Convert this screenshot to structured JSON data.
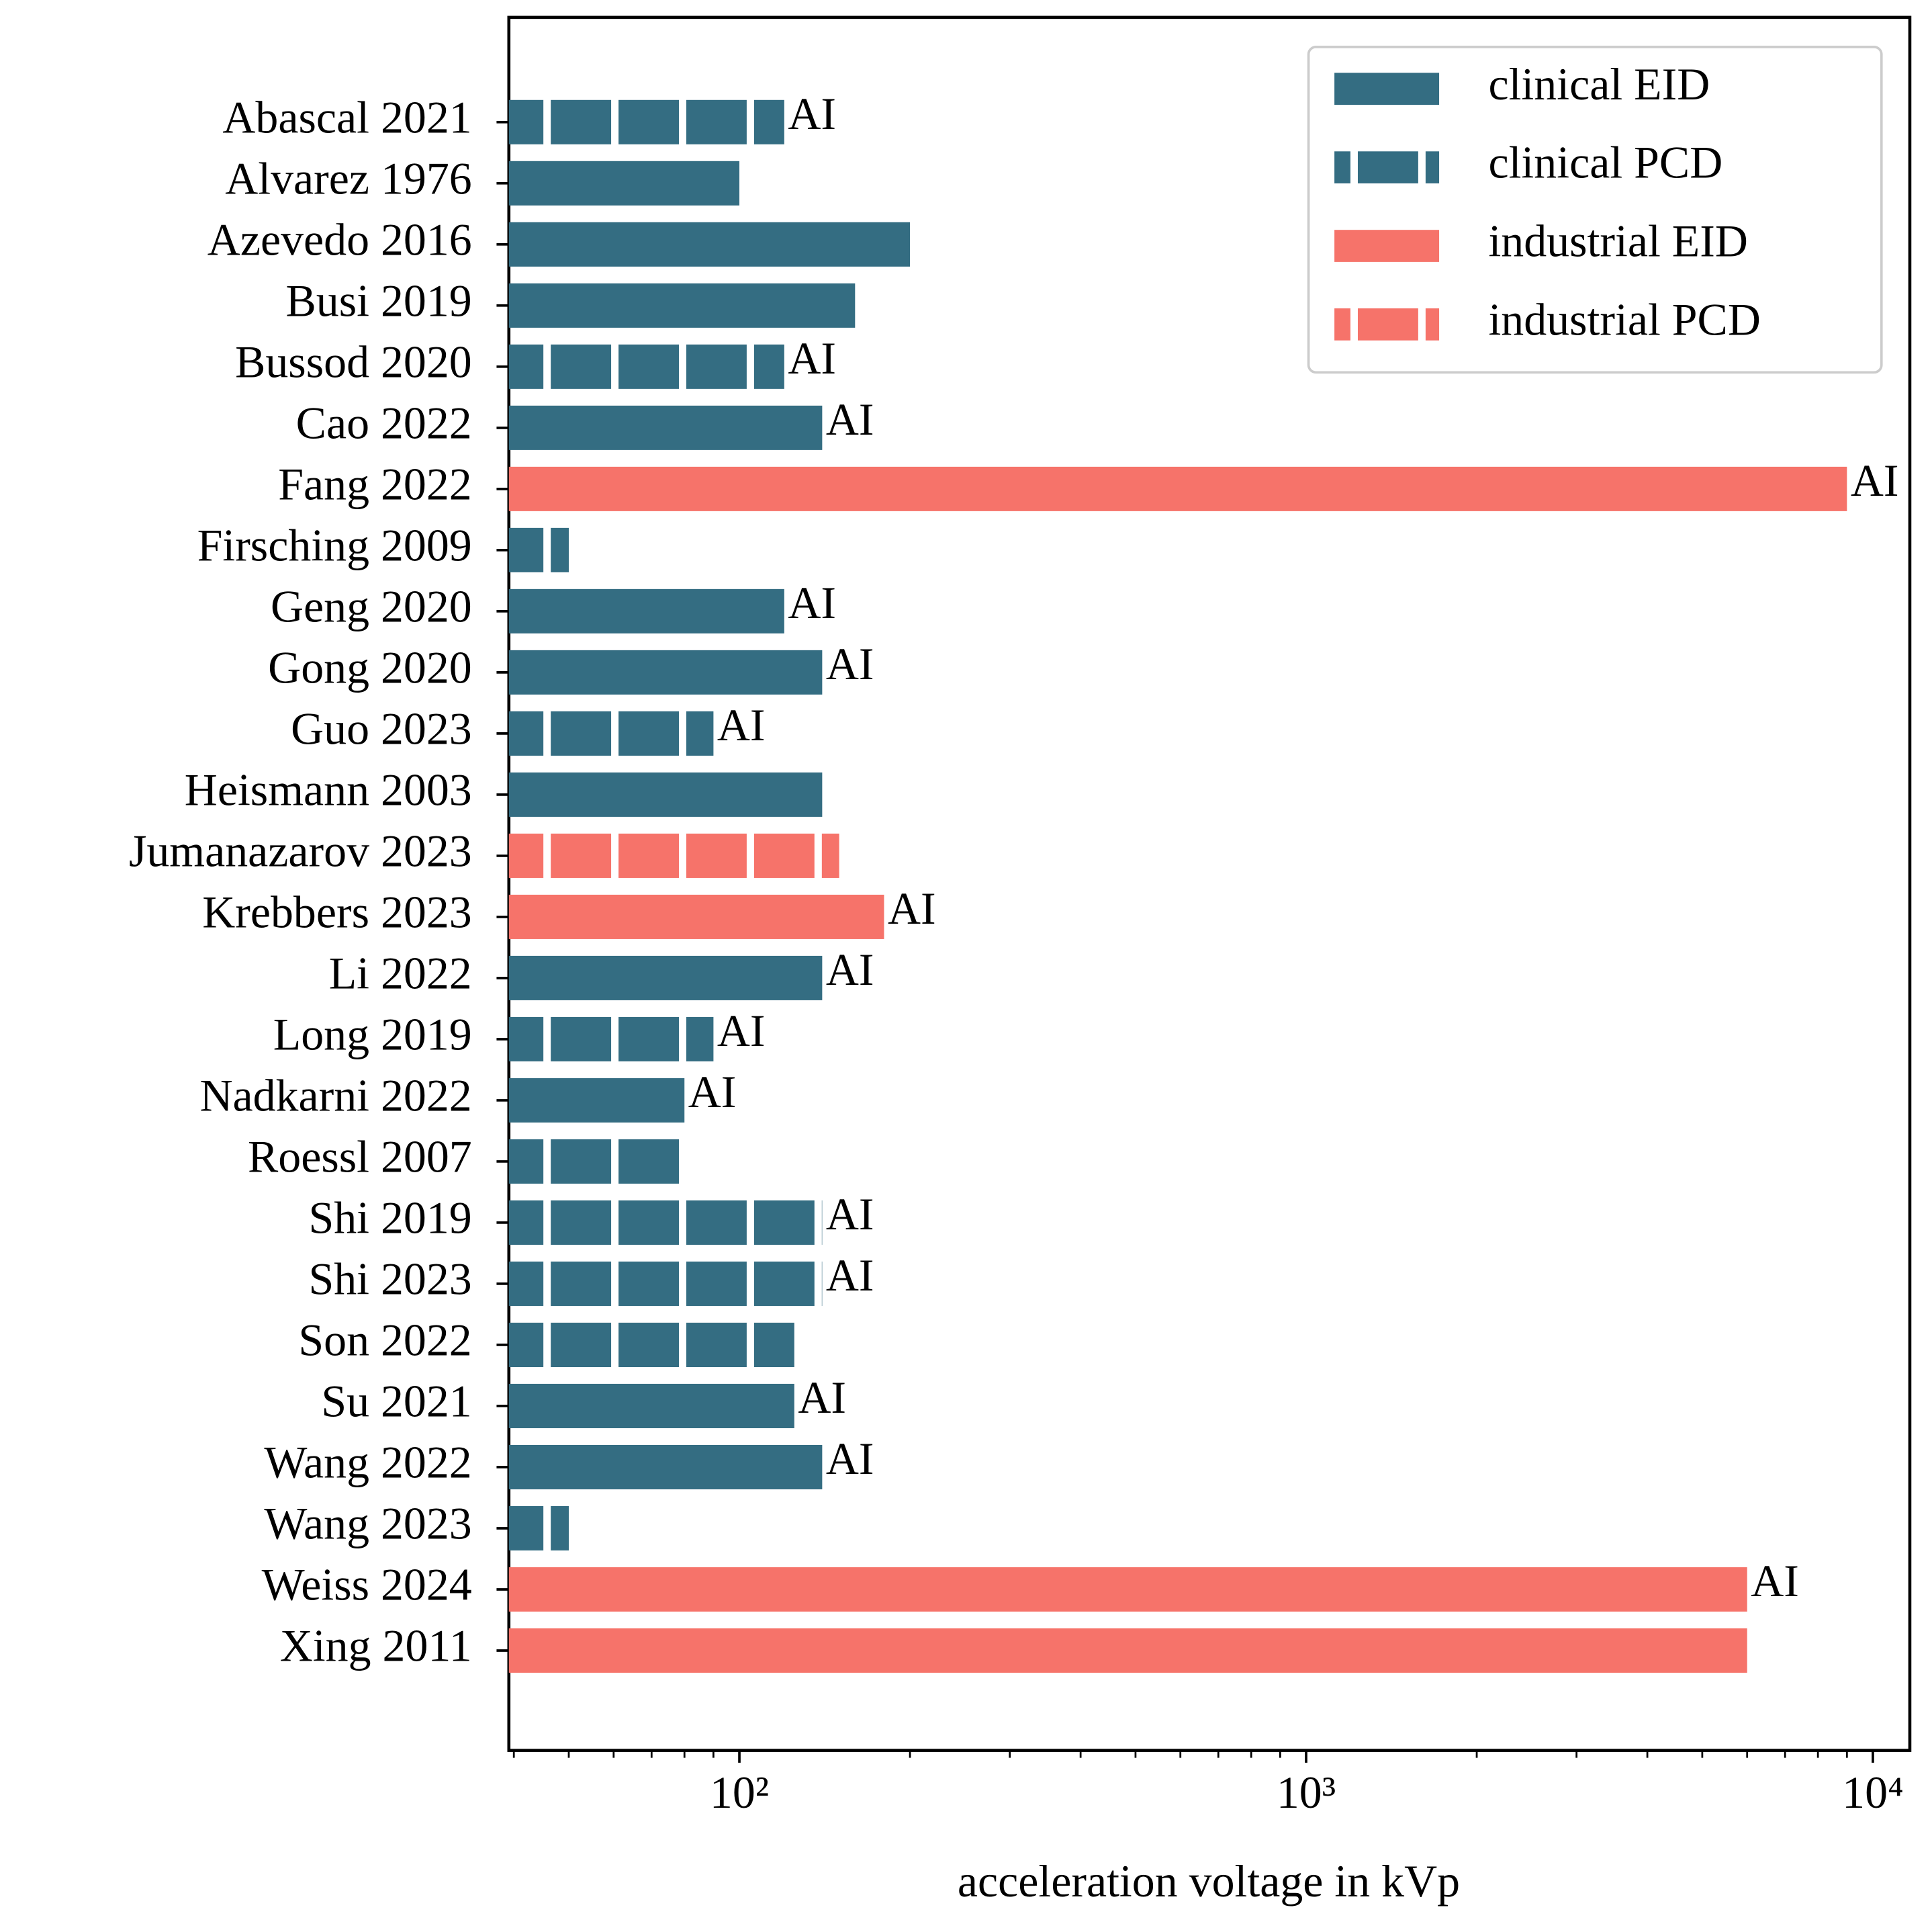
{
  "chart_data": {
    "type": "barh",
    "xlabel": "acceleration voltage in kVp",
    "categories": [
      "Abascal 2021",
      "Alvarez 1976",
      "Azevedo 2016",
      "Busi 2019",
      "Bussod 2020",
      "Cao 2022",
      "Fang 2022",
      "Firsching 2009",
      "Geng 2020",
      "Gong 2020",
      "Guo 2023",
      "Heismann 2003",
      "Jumanazarov 2023",
      "Krebbers 2023",
      "Li 2022",
      "Long 2019",
      "Nadkarni 2022",
      "Roessl 2007",
      "Shi 2019",
      "Shi 2023",
      "Son 2022",
      "Su 2021",
      "Wang 2022",
      "Wang 2023",
      "Weiss 2024",
      "Xing 2011"
    ],
    "series": [
      {
        "name": "clinical EID",
        "color": "#346d82",
        "dashed": false,
        "values": [
          null,
          100,
          200,
          160,
          null,
          140,
          null,
          null,
          120,
          140,
          null,
          140,
          null,
          null,
          140,
          null,
          80,
          null,
          null,
          null,
          null,
          125,
          140,
          null,
          null,
          null
        ]
      },
      {
        "name": "clinical PCD",
        "color": "#346d82",
        "dashed": true,
        "values": [
          120,
          null,
          null,
          null,
          120,
          null,
          null,
          50,
          null,
          null,
          90,
          null,
          null,
          null,
          null,
          90,
          null,
          80,
          140,
          140,
          125,
          null,
          null,
          50,
          null,
          null
        ]
      },
      {
        "name": "industrial EID",
        "color": "#f6736a",
        "dashed": false,
        "values": [
          null,
          null,
          null,
          null,
          null,
          null,
          9000,
          null,
          null,
          null,
          null,
          null,
          null,
          180,
          null,
          null,
          null,
          null,
          null,
          null,
          null,
          null,
          null,
          null,
          6000,
          6000
        ]
      },
      {
        "name": "industrial PCD",
        "color": "#f6736a",
        "dashed": true,
        "values": [
          null,
          null,
          null,
          null,
          null,
          null,
          null,
          null,
          null,
          null,
          null,
          null,
          150,
          null,
          null,
          null,
          null,
          null,
          null,
          null,
          null,
          null,
          null,
          null,
          null,
          null
        ]
      }
    ],
    "bar_notes": [
      "AI",
      null,
      null,
      null,
      "AI",
      "AI",
      "AI",
      null,
      "AI",
      "AI",
      "AI",
      null,
      null,
      "AI",
      "AI",
      "AI",
      "AI",
      null,
      "AI",
      "AI",
      null,
      "AI",
      "AI",
      null,
      "AI",
      null
    ],
    "xscale": "log",
    "xlim": [
      39.2,
      11620
    ],
    "xticks": [
      {
        "value": 100,
        "label": "10²"
      },
      {
        "value": 1000,
        "label": "10³"
      },
      {
        "value": 10000,
        "label": "10⁴"
      }
    ],
    "xminorticks": [
      40,
      50,
      60,
      70,
      80,
      90,
      200,
      300,
      400,
      500,
      600,
      700,
      800,
      900,
      2000,
      3000,
      4000,
      5000,
      6000,
      7000,
      8000,
      9000
    ],
    "legend": "upper right"
  }
}
